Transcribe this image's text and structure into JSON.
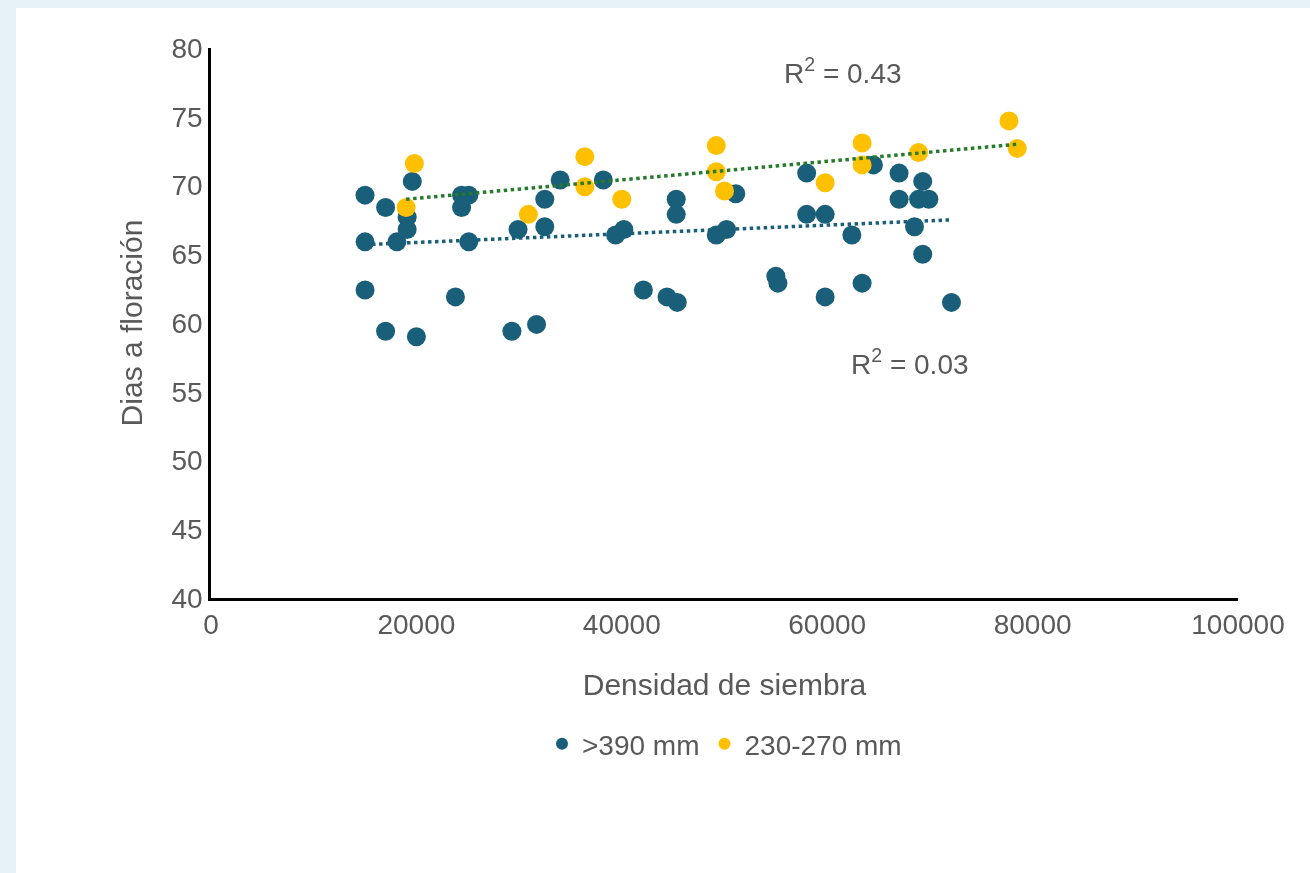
{
  "chart_data": {
    "type": "scatter",
    "xlabel": "Densidad de siembra",
    "ylabel": "Dias a floración",
    "xlim": [
      0,
      100000
    ],
    "xticks": [
      0,
      20000,
      40000,
      60000,
      80000,
      100000
    ],
    "ylim": [
      40,
      80
    ],
    "yticks": [
      40,
      45,
      50,
      55,
      60,
      65,
      70,
      75,
      80
    ],
    "grid": false,
    "legend": "bottom",
    "marker": "circle",
    "series": [
      {
        "name": ">390 mm",
        "color": "#1a5f7a",
        "x": [
          15000,
          15000,
          15000,
          17000,
          17000,
          18100,
          19100,
          19100,
          19600,
          20000,
          23800,
          24400,
          24400,
          25100,
          25100,
          29300,
          29900,
          31700,
          32500,
          32500,
          34000,
          38200,
          39400,
          40200,
          42100,
          44400,
          45400,
          45300,
          45300,
          49200,
          50200,
          51100,
          55000,
          55200,
          58000,
          58000,
          59800,
          59800,
          62400,
          63400,
          64500,
          67000,
          67000,
          68500,
          68900,
          69300,
          69300,
          69900,
          72100
        ],
        "values": [
          69.3,
          65.9,
          62.4,
          68.4,
          59.4,
          65.9,
          66.8,
          67.7,
          70.3,
          59.0,
          61.9,
          69.3,
          68.4,
          69.3,
          65.9,
          59.4,
          66.8,
          59.9,
          69.0,
          67.0,
          70.4,
          70.4,
          66.4,
          66.8,
          62.4,
          61.9,
          61.5,
          69.0,
          67.9,
          66.4,
          66.8,
          69.4,
          63.4,
          62.9,
          70.9,
          67.9,
          67.9,
          61.9,
          66.4,
          62.9,
          71.5,
          70.9,
          69.0,
          67.0,
          69.0,
          70.3,
          65.0,
          69.0,
          61.5
        ]
      },
      {
        "name": "230-270 mm",
        "color": "#ffc000",
        "x": [
          19800,
          19000,
          30900,
          36400,
          36400,
          40000,
          49200,
          49200,
          50000,
          59800,
          63400,
          63400,
          68900,
          77700,
          78500
        ],
        "values": [
          71.6,
          68.4,
          67.9,
          72.1,
          69.9,
          69.0,
          72.9,
          71.0,
          69.6,
          70.2,
          73.1,
          71.5,
          72.4,
          74.7,
          72.7
        ]
      },
      {
        "type": "line",
        "color": "#1a5f7a",
        "line_style": "dotted",
        "marker": "none",
        "x": [
          15000,
          72000
        ],
        "values": [
          65.7,
          67.5
        ]
      },
      {
        "type": "line",
        "color": "#267a2c",
        "line_style": "dotted",
        "marker": "none",
        "x": [
          19000,
          78500
        ],
        "values": [
          69.0,
          73.0
        ]
      }
    ],
    "annotations": [
      "R$^{2}$ = 0.43",
      "R$^{2}$ = 0.03"
    ]
  }
}
